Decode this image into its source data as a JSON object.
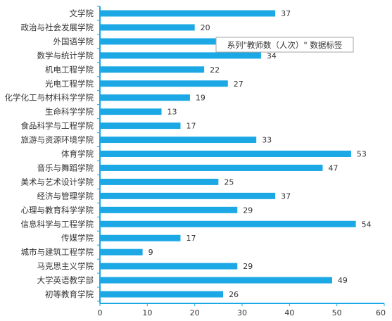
{
  "chart_data": {
    "type": "bar",
    "orientation": "horizontal",
    "categories": [
      "文学院",
      "政治与社会发展学院",
      "外国语学院",
      "数学与统计学院",
      "机电工程学院",
      "光电工程学院",
      "化学化工与材料科学学院",
      "生命科学学院",
      "食品科学与工程学院",
      "旅游与资源环境学院",
      "体育学院",
      "音乐与舞蹈学院",
      "美术与艺术设计学院",
      "经济与管理学院",
      "心理与教育科学学院",
      "信息科学与工程学院",
      "传媒学院",
      "城市与建筑工程学院",
      "马克思主义学院",
      "大学英语教学部",
      "初等教育学院"
    ],
    "series": [
      {
        "name": "教师数（人次）",
        "values": [
          37,
          20,
          25,
          34,
          22,
          27,
          19,
          13,
          17,
          33,
          53,
          47,
          25,
          37,
          29,
          54,
          17,
          9,
          29,
          49,
          26
        ],
        "data_labels": [
          "37",
          "20",
          "",
          "34",
          "22",
          "27",
          "19",
          "13",
          "17",
          "33",
          "53",
          "47",
          "25",
          "37",
          "29",
          "54",
          "17",
          "9",
          "29",
          "49",
          "26"
        ]
      }
    ],
    "xlim": [
      0,
      60
    ],
    "x_ticks": [
      "0",
      "10",
      "20",
      "30",
      "40",
      "50",
      "60"
    ],
    "grid": false,
    "legend": "none",
    "colors": {
      "bar": "#1BA8E5",
      "axis": "#1BA8E5",
      "text": "#333333"
    }
  },
  "tooltip": {
    "text": "系列\"教师数（人次）\" 数据标签"
  }
}
